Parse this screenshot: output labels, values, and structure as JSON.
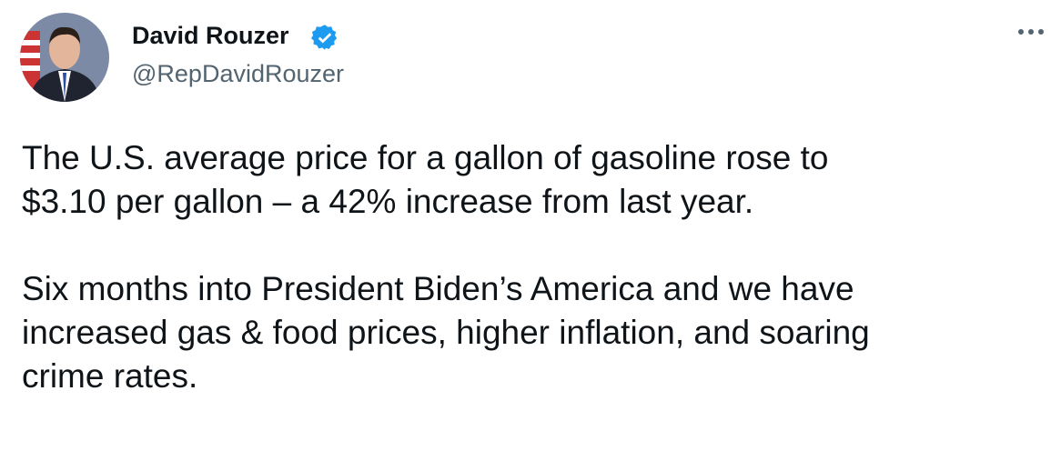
{
  "author": {
    "name": "David Rouzer",
    "handle": "@RepDavidRouzer"
  },
  "tweet": {
    "paragraphs": [
      [
        "The U.S. average price for a gallon of gasoline rose to",
        "$3.10 per gallon – a 42% increase from last year."
      ],
      [
        "Six months into President Biden’s America and we have",
        "increased gas & food prices, higher inflation, and soaring",
        "crime rates."
      ]
    ]
  }
}
